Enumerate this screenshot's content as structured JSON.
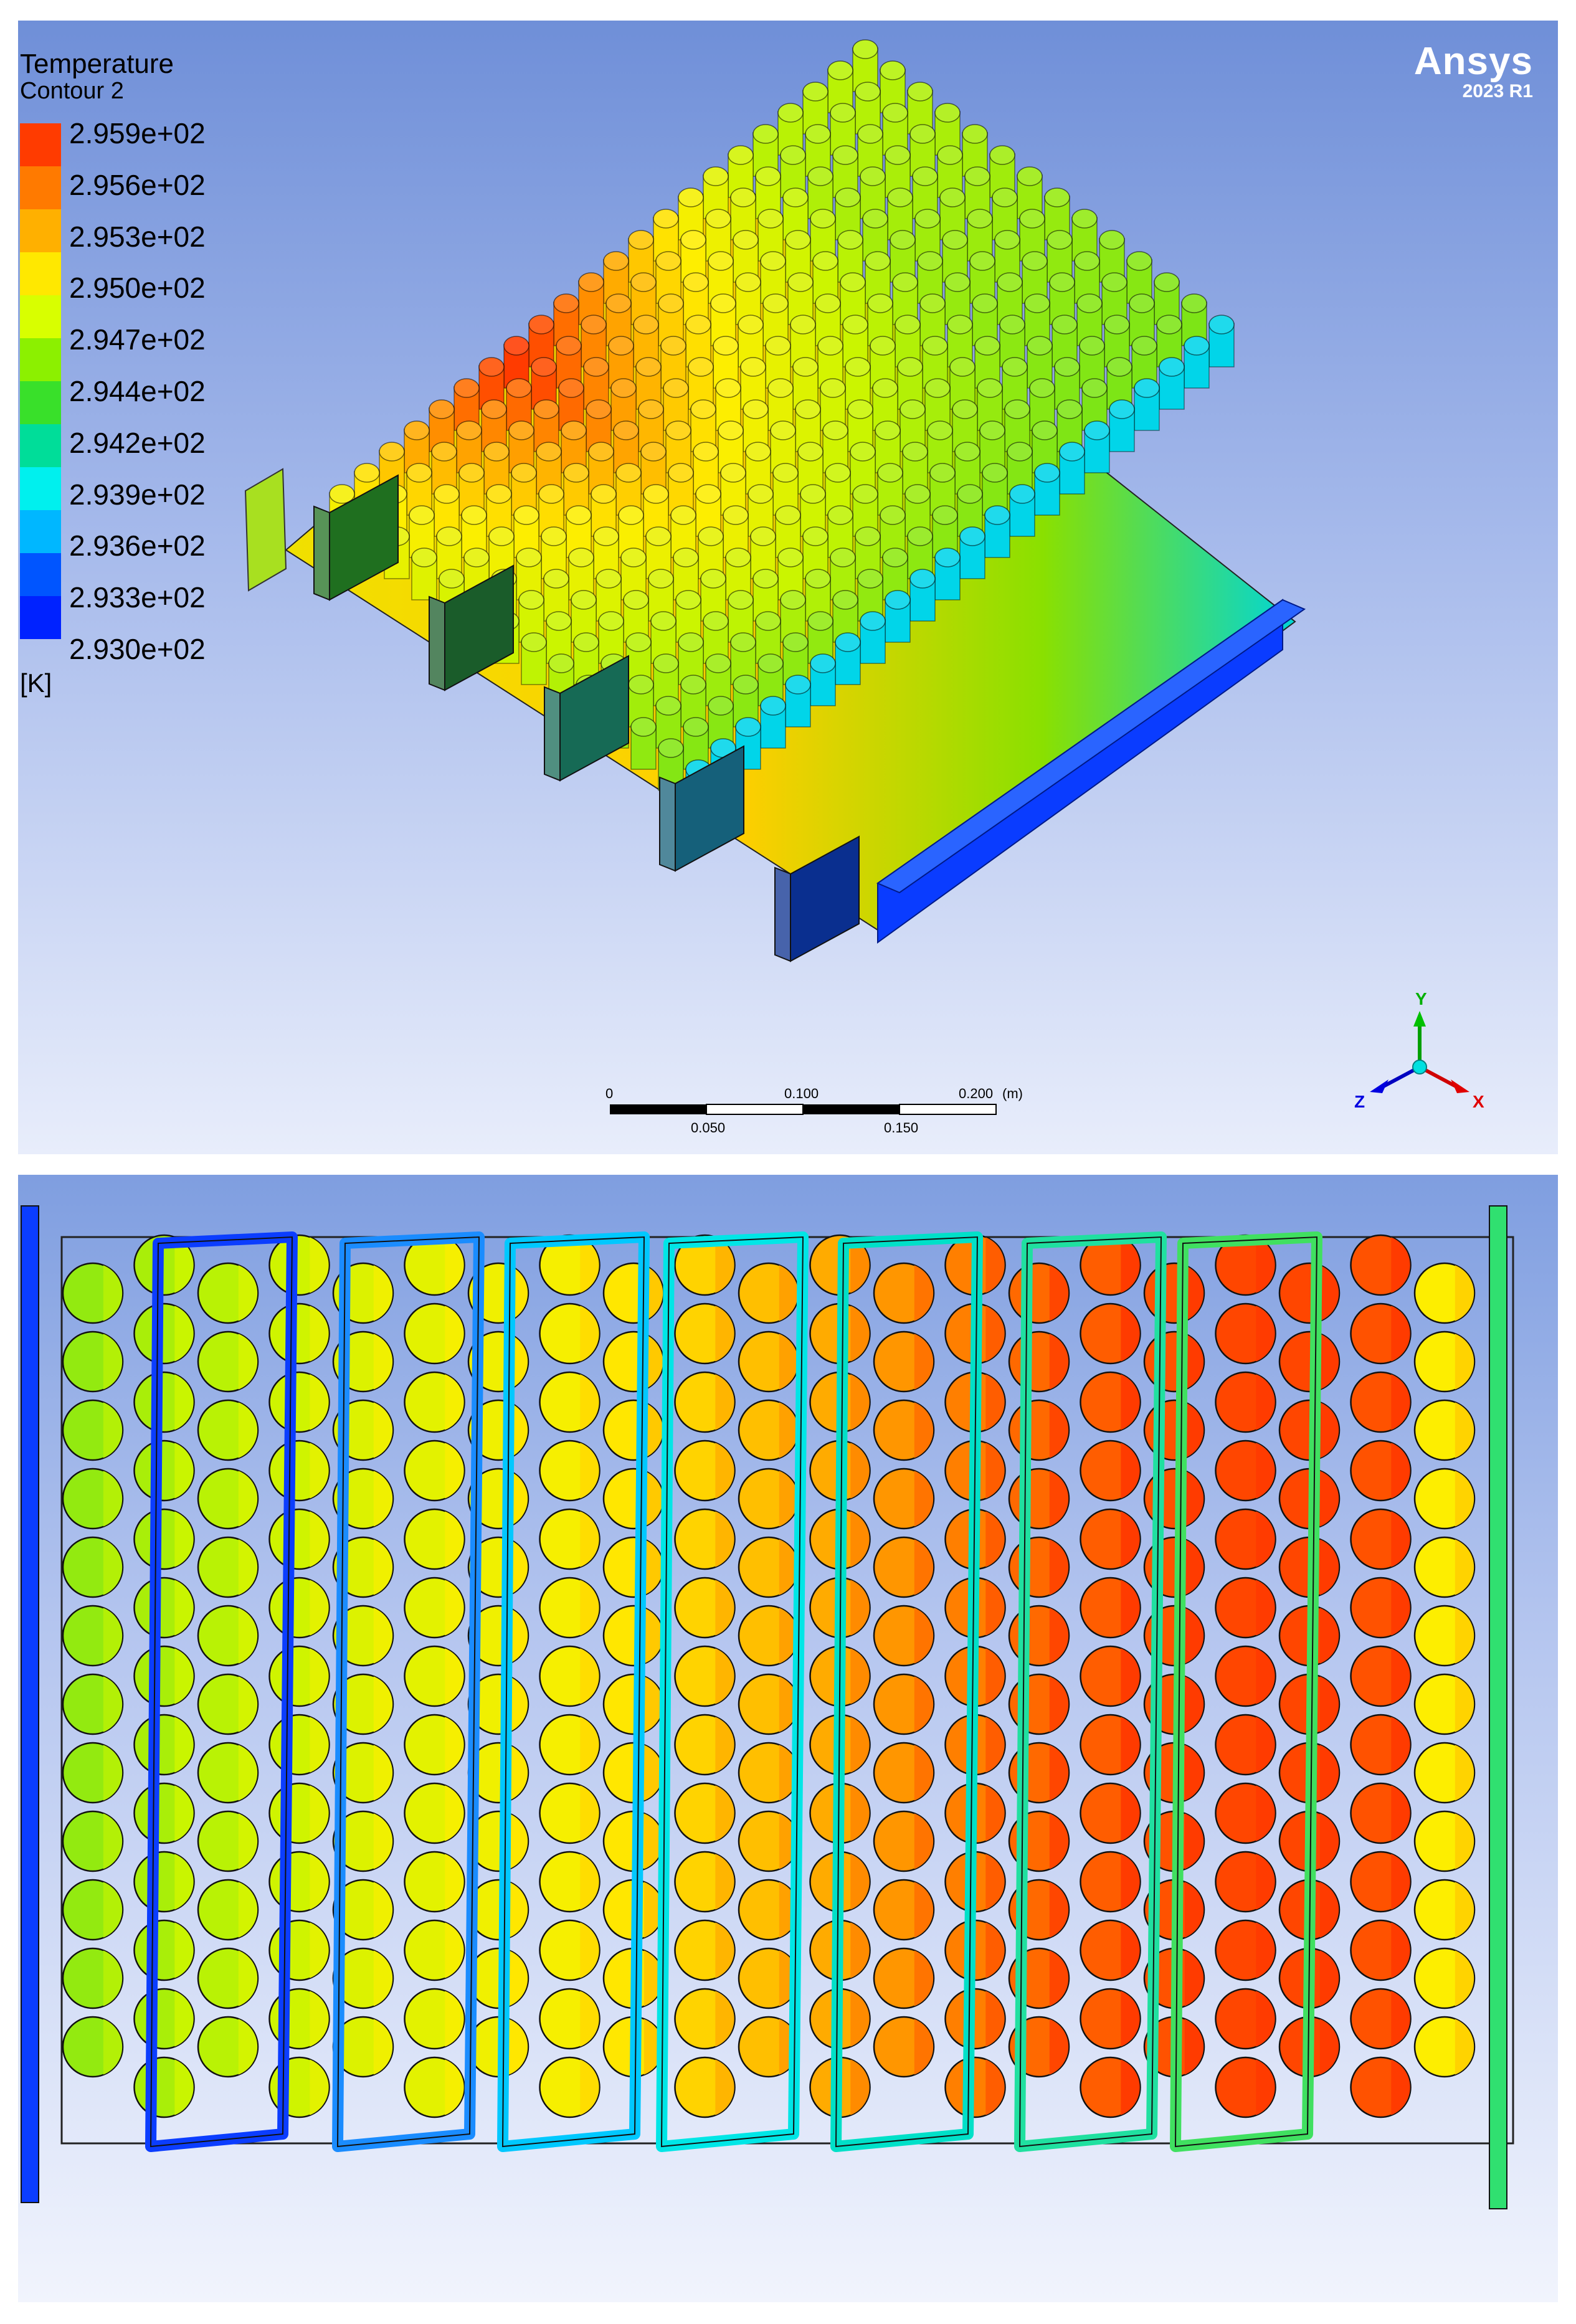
{
  "app": {
    "brand": "Ansys",
    "version": "2023 R1"
  },
  "legend": {
    "title": "Temperature",
    "subtitle": "Contour 2",
    "unit": "[K]",
    "labels": [
      "2.959e+02",
      "2.956e+02",
      "2.953e+02",
      "2.950e+02",
      "2.947e+02",
      "2.944e+02",
      "2.942e+02",
      "2.939e+02",
      "2.936e+02",
      "2.933e+02",
      "2.930e+02"
    ],
    "colors": [
      "#ff3b00",
      "#ff7a00",
      "#ffb000",
      "#ffe800",
      "#d8ff00",
      "#8cf000",
      "#39e02a",
      "#00dd99",
      "#00f0ee",
      "#00b7ff",
      "#0055ff",
      "#0022ff"
    ]
  },
  "scale_bar": {
    "top_labels": [
      "0",
      "0.100",
      "0.200",
      "(m)"
    ],
    "bottom_labels": [
      "0.050",
      "0.150"
    ]
  },
  "triad": {
    "y": "Y",
    "x": "X",
    "z": "Z"
  },
  "colors": {
    "red": "#ff3b00",
    "orange": "#ff9a00",
    "yellow": "#ffee00",
    "yellowgreen": "#c9f500",
    "green": "#6fe21a",
    "cyan": "#00e6e6",
    "blue": "#0b3dff",
    "outline": "#111111"
  }
}
